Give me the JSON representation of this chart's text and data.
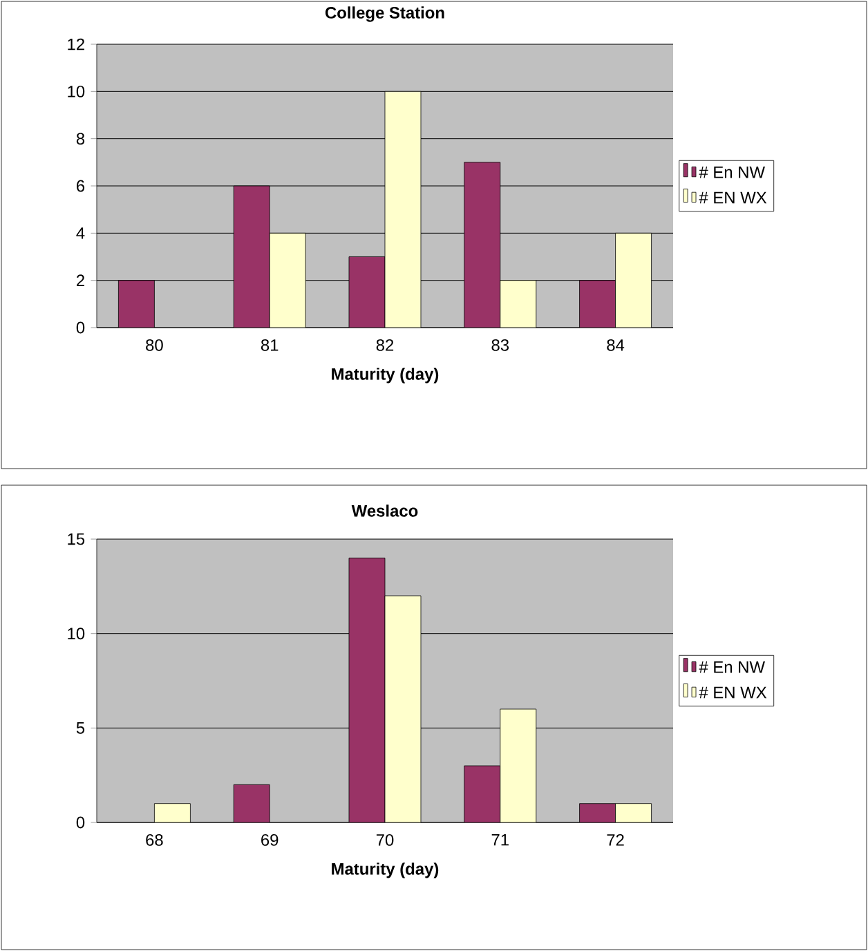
{
  "chart_data": [
    {
      "type": "bar",
      "title": "College Station",
      "xlabel": "Maturity (day)",
      "categories": [
        "80",
        "81",
        "82",
        "83",
        "84"
      ],
      "series": [
        {
          "name": "# En NW",
          "color": "#993366",
          "values": [
            2,
            6,
            3,
            7,
            2
          ]
        },
        {
          "name": "# EN WX",
          "color": "#ffffcc",
          "values": [
            null,
            4,
            10,
            2,
            4
          ]
        }
      ],
      "ylim": [
        0,
        12
      ],
      "yticks": [
        0,
        2,
        4,
        6,
        8,
        10,
        12
      ],
      "grid": "y",
      "legend": "right"
    },
    {
      "type": "bar",
      "title": "Weslaco",
      "xlabel": "Maturity (day)",
      "categories": [
        "68",
        "69",
        "70",
        "71",
        "72"
      ],
      "series": [
        {
          "name": "# En NW",
          "color": "#993366",
          "values": [
            null,
            2,
            14,
            3,
            1
          ]
        },
        {
          "name": "# EN WX",
          "color": "#ffffcc",
          "values": [
            1,
            null,
            12,
            6,
            1
          ]
        }
      ],
      "ylim": [
        0,
        15
      ],
      "yticks": [
        0,
        5,
        10,
        15
      ],
      "grid": "y",
      "legend": "right"
    }
  ]
}
